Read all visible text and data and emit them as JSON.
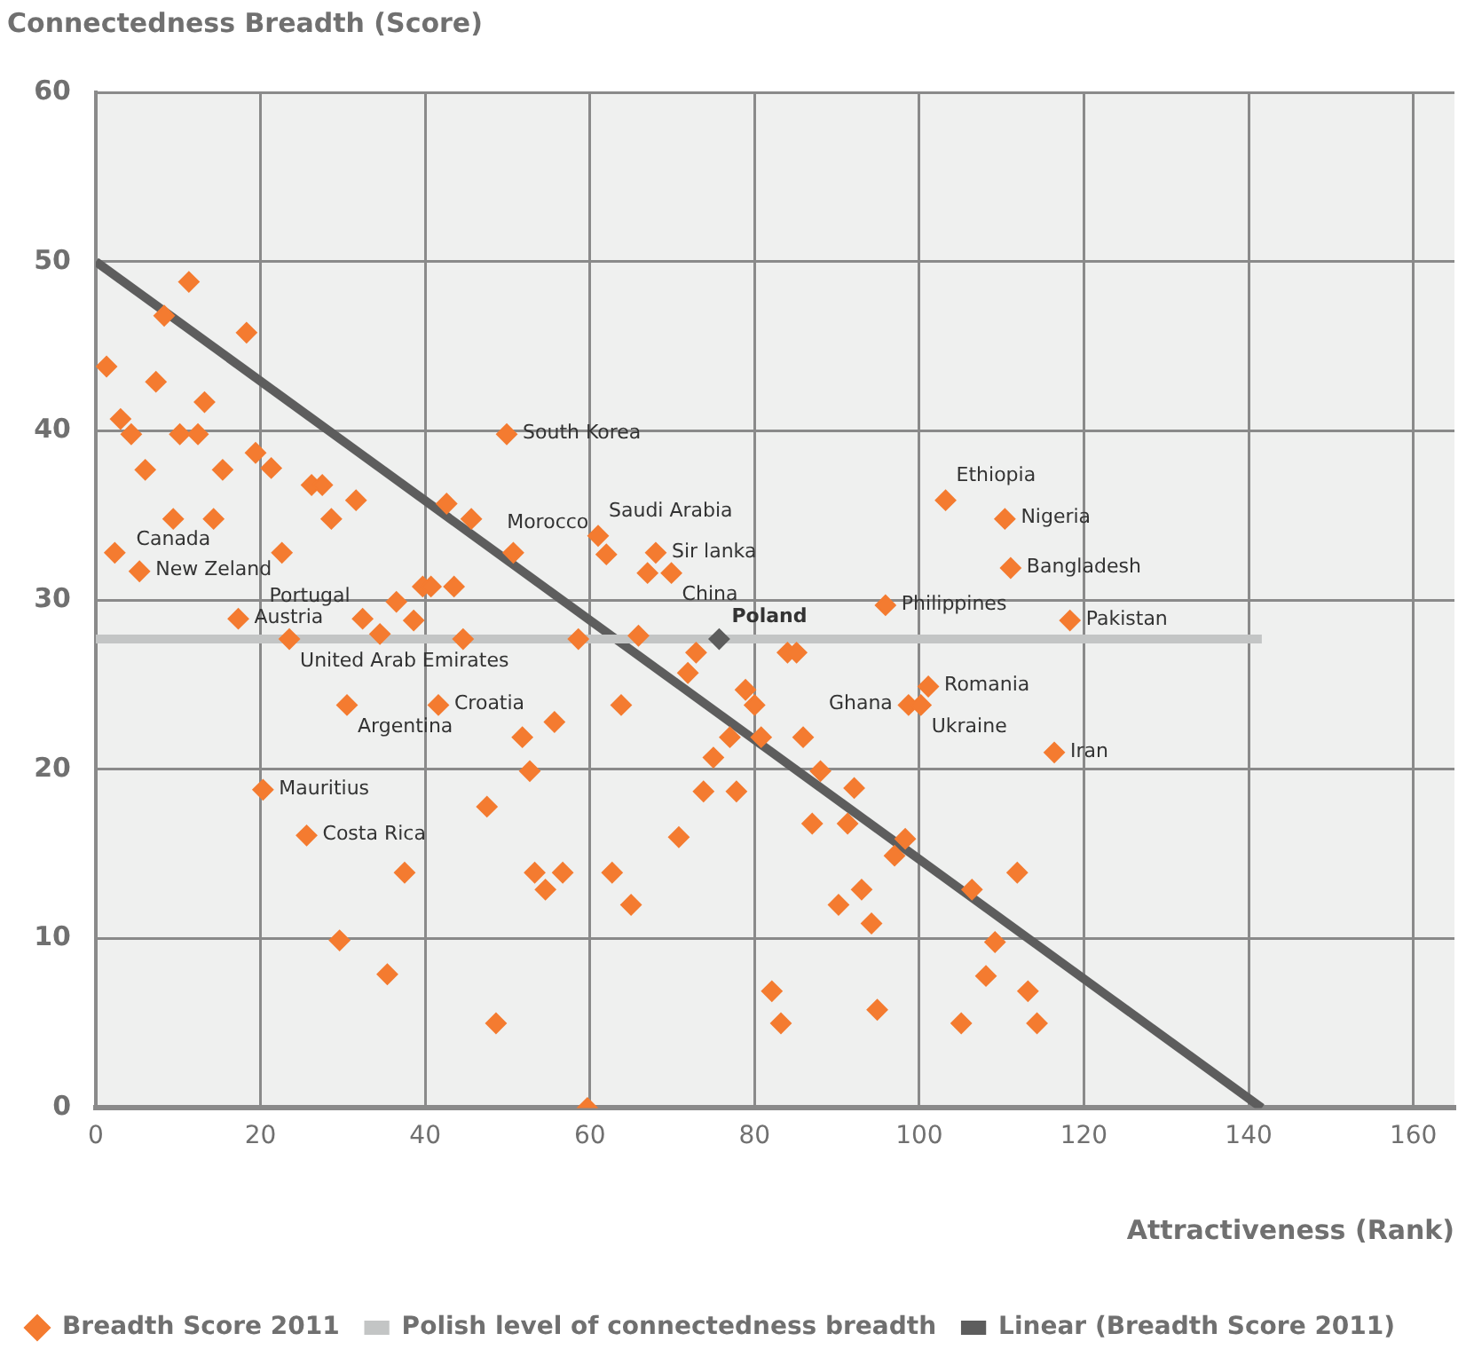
{
  "chart_data": {
    "type": "scatter",
    "xlabel": "Attractiveness (Rank)",
    "ylabel": "Connectedness Breadth (Score)",
    "xlim": [
      0,
      165
    ],
    "ylim": [
      0,
      60
    ],
    "xticks": [
      0,
      20,
      40,
      60,
      80,
      100,
      120,
      140,
      160
    ],
    "yticks": [
      0,
      10,
      20,
      30,
      40,
      50,
      60
    ],
    "grid": true,
    "legend": "bottom left",
    "series": [
      {
        "name": "Breadth Score 2011",
        "marker": "diamond",
        "color": "#f47b30",
        "x": [
          1.3,
          3,
          4.3,
          6,
          8.3,
          11.3,
          7.3,
          10.2,
          12.4,
          13.2,
          15.4,
          9.4,
          14.3,
          18.3,
          19.4,
          21.3,
          2.3,
          5.3,
          17.3,
          22.6,
          26.2,
          27.5,
          28.6,
          31.6,
          32.4,
          23.5,
          36.5,
          34.5,
          38.6,
          39.7,
          40.7,
          43.5,
          42.6,
          45.6,
          44.6,
          50.7,
          49.9,
          30.5,
          41.6,
          51.8,
          52.7,
          20.3,
          25.6,
          37.5,
          29.6,
          35.4,
          47.5,
          48.6,
          61,
          62,
          68,
          67,
          69.9,
          58.6,
          65.9,
          72.9,
          71.9,
          84,
          85.1,
          78.9,
          80,
          63.8,
          55.7,
          77,
          80.8,
          85.9,
          75,
          88,
          92.1,
          73.8,
          77.8,
          95.9,
          103.2,
          87,
          91.3,
          70.8,
          53.3,
          56.7,
          54.6,
          62.7,
          65,
          82.1,
          83.2,
          94.9,
          59.7,
          97,
          98.3,
          93,
          90.2,
          94.2,
          105.1,
          110.4,
          111.1,
          118.3,
          101.1,
          98.7,
          100.2,
          116.4,
          106.4,
          111.9,
          109.2,
          108.1,
          113.2,
          114.3
        ],
        "values": [
          43.8,
          40.7,
          39.8,
          37.7,
          46.8,
          48.8,
          42.9,
          39.8,
          39.8,
          41.7,
          37.7,
          34.8,
          34.8,
          45.8,
          38.7,
          37.8,
          32.8,
          31.7,
          28.9,
          32.8,
          36.8,
          36.8,
          34.8,
          35.9,
          28.9,
          27.7,
          29.9,
          28,
          28.8,
          30.8,
          30.8,
          30.8,
          35.7,
          34.8,
          27.7,
          32.8,
          39.8,
          23.8,
          23.8,
          21.9,
          19.9,
          18.8,
          16.1,
          13.9,
          9.9,
          7.9,
          17.8,
          5,
          33.8,
          32.7,
          32.8,
          31.6,
          31.6,
          27.7,
          27.9,
          26.9,
          25.7,
          26.9,
          26.9,
          24.7,
          23.8,
          23.8,
          22.8,
          21.9,
          21.9,
          21.9,
          20.7,
          19.9,
          18.9,
          18.7,
          18.7,
          29.7,
          35.9,
          16.8,
          16.8,
          16,
          13.9,
          13.9,
          12.9,
          13.9,
          12,
          6.9,
          5,
          5.8,
          0,
          14.9,
          15.9,
          12.9,
          12,
          10.9,
          5,
          34.8,
          31.9,
          28.8,
          24.9,
          23.8,
          23.8,
          21,
          12.9,
          13.9,
          9.8,
          7.8,
          6.9,
          5
        ]
      },
      {
        "marker": "diamond",
        "color": "#5d5d5d",
        "x": [
          75.7
        ],
        "values": [
          27.7
        ]
      },
      {
        "name": "Polish level of connectedness breadth",
        "type": "line",
        "marker": "none",
        "color": "#c3c5c5",
        "x": [
          0,
          141.6
        ],
        "values": [
          27.7,
          27.7
        ]
      },
      {
        "name": "Linear (Breadth Score 2011)",
        "type": "line",
        "marker": "none",
        "color": "#5d5d5d",
        "x": [
          0,
          141.6
        ],
        "values": [
          50,
          0
        ]
      }
    ],
    "annotations": [
      {
        "text": "Canada",
        "x": 2.3,
        "y": 32.8
      },
      {
        "text": "New Zeland",
        "x": 5.3,
        "y": 31.7
      },
      {
        "text": "Austria",
        "x": 17.3,
        "y": 28.9
      },
      {
        "text": "Portugal",
        "x": 32.4,
        "y": 28.9
      },
      {
        "text": "United Arab Emirates",
        "x": 23.5,
        "y": 27.7
      },
      {
        "text": "Argentina",
        "x": 30.5,
        "y": 23.8
      },
      {
        "text": "Croatia",
        "x": 41.6,
        "y": 23.8
      },
      {
        "text": "Mauritius",
        "x": 20.3,
        "y": 18.8
      },
      {
        "text": "Costa Rica",
        "x": 25.6,
        "y": 16.1
      },
      {
        "text": "South Korea",
        "x": 49.9,
        "y": 39.8
      },
      {
        "text": "Saudi Arabia",
        "x": 61,
        "y": 33.8
      },
      {
        "text": "Morocco",
        "x": 62,
        "y": 32.7
      },
      {
        "text": "Sir lanka",
        "x": 68,
        "y": 32.8
      },
      {
        "text": "China",
        "x": 69.9,
        "y": 31.6
      },
      {
        "text": "Poland",
        "x": 75.7,
        "y": 27.7
      },
      {
        "text": "Philippines",
        "x": 95.9,
        "y": 29.7
      },
      {
        "text": "Ethiopia",
        "x": 103.2,
        "y": 35.9
      },
      {
        "text": "Nigeria",
        "x": 110.4,
        "y": 34.8
      },
      {
        "text": "Bangladesh",
        "x": 111.1,
        "y": 31.9
      },
      {
        "text": "Pakistan",
        "x": 118.3,
        "y": 28.8
      },
      {
        "text": "Romania",
        "x": 101.1,
        "y": 24.9
      },
      {
        "text": "Ukraine",
        "x": 100.2,
        "y": 23.8
      },
      {
        "text": "Ghana",
        "x": 98.7,
        "y": 23.8
      },
      {
        "text": "Iran",
        "x": 116.4,
        "y": 21
      }
    ]
  }
}
